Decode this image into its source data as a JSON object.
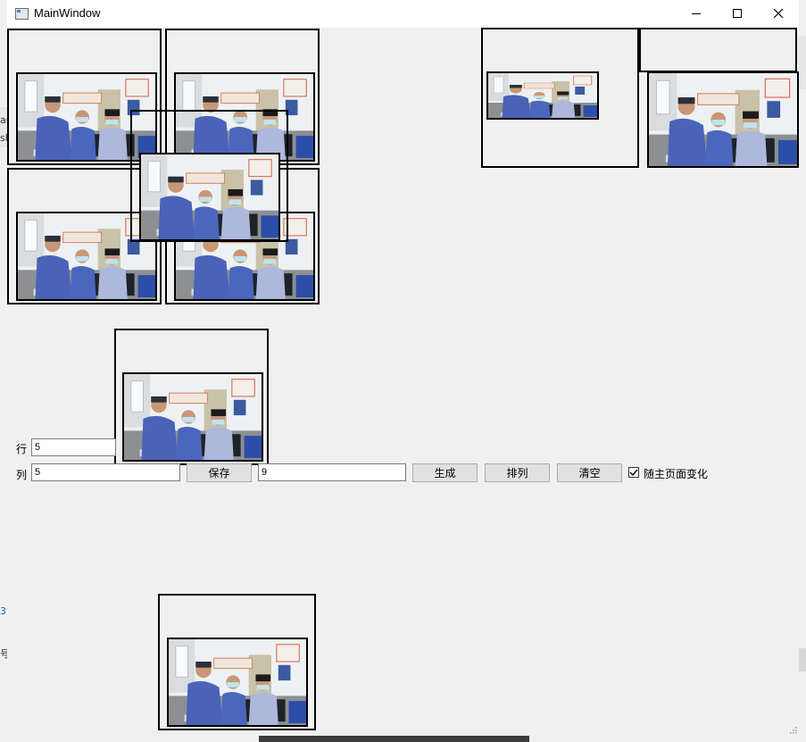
{
  "window": {
    "title": "MainWindow",
    "icon": "app-window-icon",
    "controls": [
      "minimize-icon",
      "maximize-icon",
      "close-icon"
    ]
  },
  "form": {
    "rows_label": "行",
    "rows_value": "5",
    "cols_label": "列",
    "cols_value": "5",
    "save_label": "保存",
    "count_value": "9",
    "generate_label": "生成",
    "arrange_label": "排列",
    "clear_label": "清空",
    "follow_checkbox_label": "随主页面变化",
    "follow_checked": true
  },
  "background_fragments": [
    "au",
    "sh",
    "3",
    "号"
  ],
  "colors": {
    "window_bg": "#f0f0f0",
    "titlebar_bg": "#ffffff",
    "frame_border": "#000000",
    "button_bg": "#e1e1e1"
  }
}
